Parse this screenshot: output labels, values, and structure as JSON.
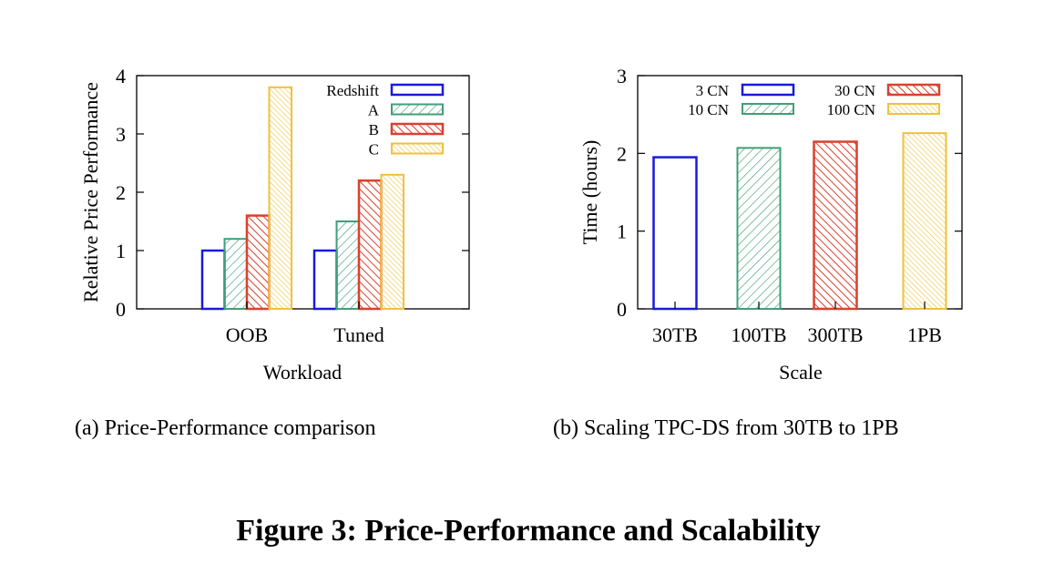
{
  "chart_data": [
    {
      "type": "bar",
      "categories": [
        "OOB",
        "Tuned"
      ],
      "series": [
        {
          "name": "Redshift",
          "values": [
            1.0,
            1.0
          ]
        },
        {
          "name": "A",
          "values": [
            1.2,
            1.5
          ]
        },
        {
          "name": "B",
          "values": [
            1.6,
            2.2
          ]
        },
        {
          "name": "C",
          "values": [
            3.8,
            2.3
          ]
        }
      ],
      "title": "",
      "xlabel": "Workload",
      "ylabel": "Relative Price Performance",
      "ylim": [
        0,
        4
      ],
      "yticks": [
        0,
        1,
        2,
        3,
        4
      ],
      "legend": "top-right",
      "caption": "(a)  Price-Performance comparison"
    },
    {
      "type": "bar",
      "categories": [
        "30TB",
        "100TB",
        "300TB",
        "1PB"
      ],
      "series": [
        {
          "name": "3 CN",
          "values": [
            1.95,
            null,
            null,
            null
          ]
        },
        {
          "name": "10 CN",
          "values": [
            null,
            2.07,
            null,
            null
          ]
        },
        {
          "name": "30 CN",
          "values": [
            null,
            null,
            2.15,
            null
          ]
        },
        {
          "name": "100 CN",
          "values": [
            null,
            null,
            null,
            2.26
          ]
        }
      ],
      "title": "",
      "xlabel": "Scale",
      "ylabel": "Time (hours)",
      "ylim": [
        0,
        3
      ],
      "yticks": [
        0,
        1,
        2,
        3
      ],
      "legend": "top",
      "caption": "(b)  Scaling TPC-DS from 30TB to 1PB"
    }
  ],
  "figure_caption": "Figure 3: Price-Performance and Scalability",
  "colors": {
    "redshift": "#1a1adb",
    "a": "#3f9f78",
    "b": "#d9412e",
    "c": "#f0c239"
  }
}
